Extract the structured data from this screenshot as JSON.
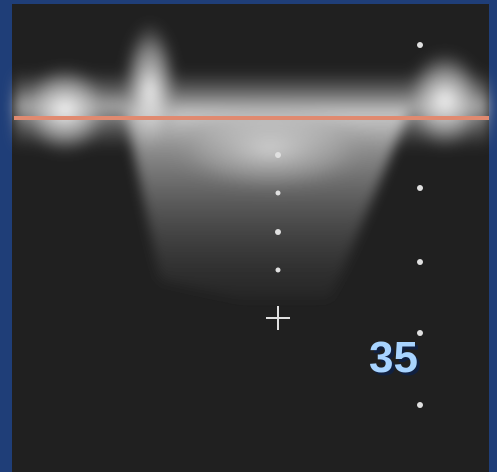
{
  "overlay_label": "35"
}
